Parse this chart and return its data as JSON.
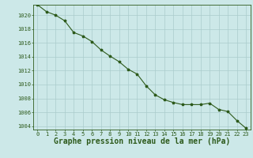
{
  "x": [
    0,
    1,
    2,
    3,
    4,
    5,
    6,
    7,
    8,
    9,
    10,
    11,
    12,
    13,
    14,
    15,
    16,
    17,
    18,
    19,
    20,
    21,
    22,
    23
  ],
  "y": [
    1021.5,
    1020.5,
    1020.0,
    1019.2,
    1017.5,
    1017.0,
    1016.2,
    1015.0,
    1014.1,
    1013.3,
    1012.2,
    1011.5,
    1009.8,
    1008.5,
    1007.8,
    1007.4,
    1007.1,
    1007.1,
    1007.1,
    1007.3,
    1006.4,
    1006.1,
    1004.8,
    1003.7
  ],
  "ylim": [
    1003.5,
    1021.5
  ],
  "xlim": [
    -0.5,
    23.5
  ],
  "yticks": [
    1004,
    1006,
    1008,
    1010,
    1012,
    1014,
    1016,
    1018,
    1020
  ],
  "xticks": [
    0,
    1,
    2,
    3,
    4,
    5,
    6,
    7,
    8,
    9,
    10,
    11,
    12,
    13,
    14,
    15,
    16,
    17,
    18,
    19,
    20,
    21,
    22,
    23
  ],
  "line_color": "#2d5a1b",
  "marker": "*",
  "marker_size": 2.5,
  "bg_color": "#cce8e8",
  "grid_color": "#aacccc",
  "xlabel": "Graphe pression niveau de la mer (hPa)",
  "xlabel_color": "#2d5a1b",
  "tick_color": "#2d5a1b",
  "tick_fontsize": 5.0,
  "xlabel_fontsize": 7.0
}
